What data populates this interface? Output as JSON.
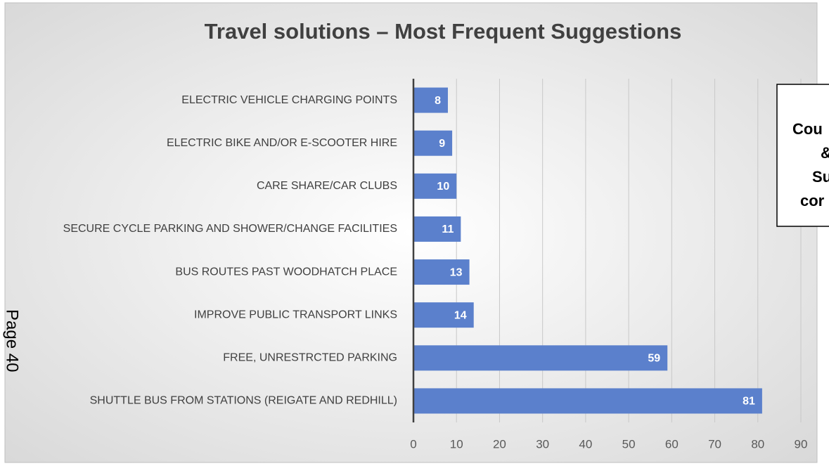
{
  "chart_data": {
    "type": "barh",
    "title": "Travel solutions – Most Frequent Suggestions",
    "categories": [
      "ELECTRIC VEHICLE CHARGING POINTS",
      "ELECTRIC BIKE AND/OR E-SCOOTER HIRE",
      "CARE SHARE/CAR CLUBS",
      "SECURE CYCLE PARKING AND SHOWER/CHANGE FACILITIES",
      "BUS ROUTES PAST WOODHATCH PLACE",
      "IMPROVE PUBLIC TRANSPORT LINKS",
      "FREE, UNRESTRCTED PARKING",
      "SHUTTLE BUS FROM STATIONS (REIGATE AND REDHILL)"
    ],
    "values": [
      8,
      9,
      10,
      11,
      13,
      14,
      59,
      81
    ],
    "color": "#5b80cc",
    "xlim": [
      0,
      90
    ],
    "xticks": [
      0,
      10,
      20,
      30,
      40,
      50,
      60,
      70,
      80,
      90
    ],
    "grid": true,
    "annotations": [
      "Cou",
      "&",
      "Su",
      "cor"
    ],
    "page_label": "Page 40"
  }
}
